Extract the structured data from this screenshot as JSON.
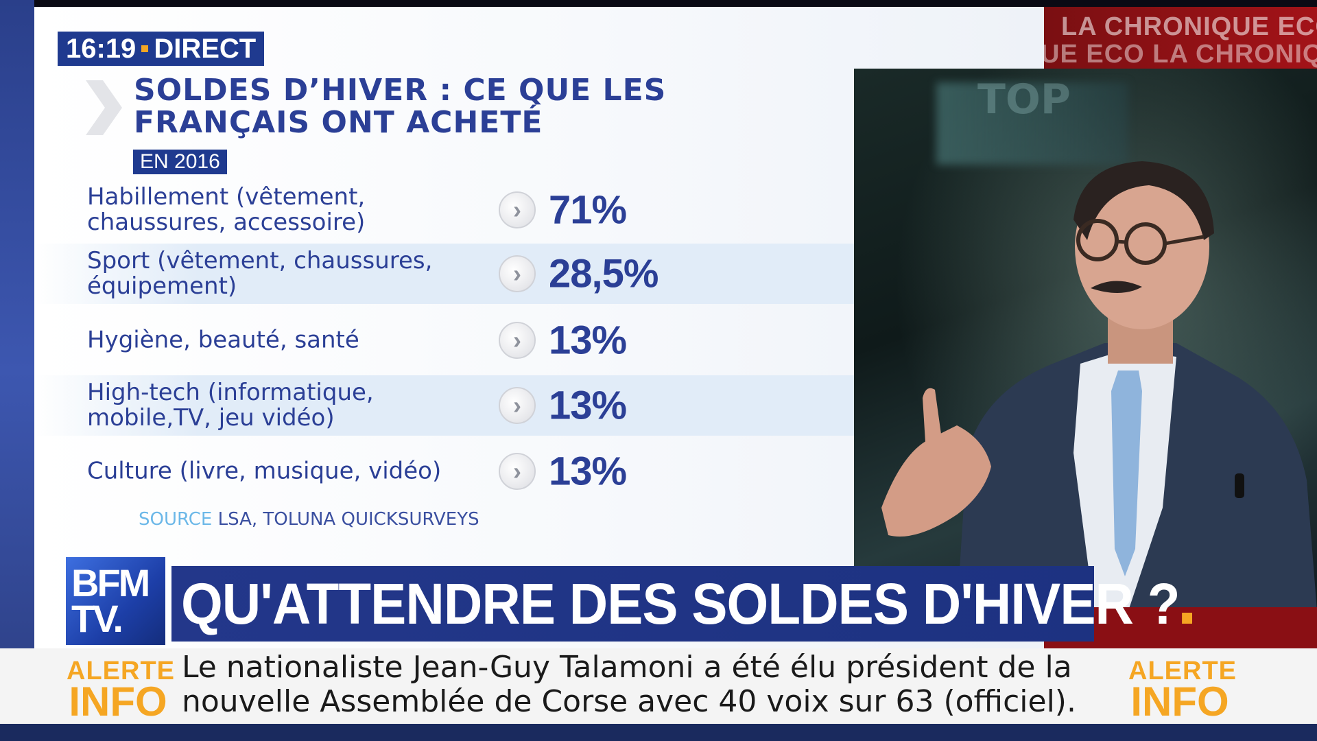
{
  "broadcast": {
    "time": "16:19",
    "live_label": "DIRECT",
    "segment_header": {
      "line1": "LA CHRONIQUE ECO",
      "line2": "UE ECO  LA CHRONIQUE"
    }
  },
  "infographic": {
    "title": "SOLDES D’HIVER : CE QUE LES FRANÇAIS ONT ACHETÉ",
    "year_badge": "EN 2016",
    "rows": [
      {
        "label": "Habillement (vêtement, chaussures, accessoire)",
        "value": "71%"
      },
      {
        "label": "Sport (vêtement, chaussures, équipement)",
        "value": "28,5%"
      },
      {
        "label": "Hygiène, beauté, santé",
        "value": "13%"
      },
      {
        "label": "High-tech (informatique, mobile,TV, jeu vidéo)",
        "value": "13%"
      },
      {
        "label": "Culture (livre, musique, vidéo)",
        "value": "13%"
      }
    ],
    "source_keyword": "SOURCE",
    "source_text": "LSA, TOLUNA QUICKSURVEYS"
  },
  "logo": {
    "line1": "BFM",
    "line2": "TV."
  },
  "headline": {
    "text": "QU'ATTENDRE DES SOLDES D'HIVER ?"
  },
  "ticker": {
    "alert_line1": "ALERTE",
    "alert_line2": "INFO",
    "text": "Le nationaliste Jean-Guy Talamoni a été élu président de la nouvelle Assemblée de Corse avec 40 voix sur 63 (officiel)."
  },
  "colors": {
    "brand_blue": "#1f3a8f",
    "text_blue": "#2b3f96",
    "accent_orange": "#f5a623",
    "segment_red": "#a31318"
  }
}
